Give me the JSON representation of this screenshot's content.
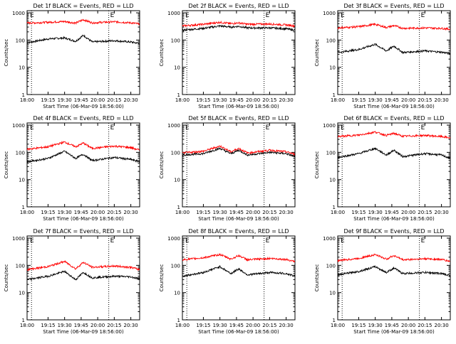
{
  "colors": {
    "events": "#000000",
    "lld": "#ff0000",
    "axis": "#000000",
    "marker": "#000000",
    "background": "#ffffff"
  },
  "shared": {
    "x_ticks": [
      "18:00",
      "19:15",
      "19:30",
      "19:45",
      "20:00",
      "20:15",
      "20:30"
    ],
    "y_ticks": [
      "1",
      "10",
      "100",
      "1000"
    ],
    "y_label": "Counts/sec",
    "x_label": "Start Time (06-Mar-09 18:56:00)",
    "marker_labels": [
      "E",
      "E"
    ],
    "vline_times": [
      "19:00",
      "20:10"
    ]
  },
  "chart_data": [
    {
      "type": "line",
      "title": "Det 1f BLACK = Events, RED = LLD",
      "yscale": "log",
      "ylim": [
        1,
        1200
      ],
      "x": [
        "18:56",
        "19:15",
        "19:30",
        "19:40",
        "19:47",
        "19:55",
        "20:15",
        "20:30",
        "20:38"
      ],
      "series": [
        {
          "name": "Events",
          "values": [
            80,
            110,
            120,
            90,
            150,
            85,
            95,
            85,
            75
          ]
        },
        {
          "name": "LLD",
          "values": [
            420,
            450,
            480,
            420,
            560,
            430,
            470,
            430,
            390
          ]
        }
      ]
    },
    {
      "type": "line",
      "title": "Det 2f BLACK = Events, RED = LLD",
      "yscale": "log",
      "ylim": [
        1,
        1200
      ],
      "x": [
        "18:56",
        "19:15",
        "19:30",
        "19:40",
        "19:47",
        "19:55",
        "20:15",
        "20:30",
        "20:38"
      ],
      "series": [
        {
          "name": "Events",
          "values": [
            230,
            270,
            330,
            300,
            320,
            280,
            280,
            260,
            230
          ]
        },
        {
          "name": "LLD",
          "values": [
            330,
            380,
            450,
            400,
            430,
            380,
            390,
            360,
            330
          ]
        }
      ]
    },
    {
      "type": "line",
      "title": "Det 3f BLACK = Events, RED = LLD",
      "yscale": "log",
      "ylim": [
        1,
        1200
      ],
      "x": [
        "18:56",
        "19:15",
        "19:30",
        "19:40",
        "19:47",
        "19:55",
        "20:15",
        "20:30",
        "20:38"
      ],
      "series": [
        {
          "name": "Events",
          "values": [
            35,
            45,
            70,
            40,
            60,
            35,
            40,
            36,
            32
          ]
        },
        {
          "name": "LLD",
          "values": [
            280,
            310,
            380,
            290,
            340,
            270,
            280,
            270,
            250
          ]
        }
      ]
    },
    {
      "type": "line",
      "title": "Det 4f BLACK = Events, RED = LLD",
      "yscale": "log",
      "ylim": [
        1,
        1200
      ],
      "x": [
        "18:56",
        "19:15",
        "19:30",
        "19:40",
        "19:47",
        "19:55",
        "20:15",
        "20:30",
        "20:38"
      ],
      "series": [
        {
          "name": "Events",
          "values": [
            45,
            60,
            110,
            60,
            85,
            50,
            65,
            55,
            45
          ]
        },
        {
          "name": "LLD",
          "values": [
            130,
            160,
            240,
            160,
            220,
            140,
            170,
            150,
            120
          ]
        }
      ]
    },
    {
      "type": "line",
      "title": "Det 5f BLACK = Events, RED = LLD",
      "yscale": "log",
      "ylim": [
        1,
        1200
      ],
      "x": [
        "18:56",
        "19:15",
        "19:30",
        "19:40",
        "19:47",
        "19:55",
        "20:15",
        "20:30",
        "20:38"
      ],
      "series": [
        {
          "name": "Events",
          "values": [
            80,
            90,
            140,
            90,
            120,
            80,
            100,
            90,
            70
          ]
        },
        {
          "name": "LLD",
          "values": [
            95,
            110,
            170,
            105,
            140,
            95,
            120,
            105,
            85
          ]
        }
      ]
    },
    {
      "type": "line",
      "title": "Det 6f BLACK = Events, RED = LLD",
      "yscale": "log",
      "ylim": [
        1,
        1200
      ],
      "x": [
        "18:56",
        "19:15",
        "19:30",
        "19:40",
        "19:47",
        "19:55",
        "20:15",
        "20:30",
        "20:38"
      ],
      "series": [
        {
          "name": "Events",
          "values": [
            65,
            90,
            140,
            80,
            120,
            70,
            90,
            80,
            60
          ]
        },
        {
          "name": "LLD",
          "values": [
            380,
            430,
            560,
            420,
            500,
            390,
            420,
            380,
            340
          ]
        }
      ]
    },
    {
      "type": "line",
      "title": "Det 7f BLACK = Events, RED = LLD",
      "yscale": "log",
      "ylim": [
        1,
        1200
      ],
      "x": [
        "18:56",
        "19:15",
        "19:30",
        "19:40",
        "19:47",
        "19:55",
        "20:15",
        "20:30",
        "20:38"
      ],
      "series": [
        {
          "name": "Events",
          "values": [
            30,
            40,
            60,
            30,
            55,
            35,
            40,
            38,
            32
          ]
        },
        {
          "name": "LLD",
          "values": [
            70,
            90,
            140,
            75,
            130,
            85,
            95,
            85,
            70
          ]
        }
      ]
    },
    {
      "type": "line",
      "title": "Det 8f BLACK = Events, RED = LLD",
      "yscale": "log",
      "ylim": [
        1,
        1200
      ],
      "x": [
        "18:56",
        "19:15",
        "19:30",
        "19:40",
        "19:47",
        "19:55",
        "20:15",
        "20:30",
        "20:38"
      ],
      "series": [
        {
          "name": "Events",
          "values": [
            40,
            55,
            90,
            50,
            75,
            45,
            55,
            50,
            40
          ]
        },
        {
          "name": "LLD",
          "values": [
            160,
            190,
            250,
            170,
            230,
            160,
            180,
            165,
            140
          ]
        }
      ]
    },
    {
      "type": "line",
      "title": "Det 9f BLACK = Events, RED = LLD",
      "yscale": "log",
      "ylim": [
        1,
        1200
      ],
      "x": [
        "18:56",
        "19:15",
        "19:30",
        "19:40",
        "19:47",
        "19:55",
        "20:15",
        "20:30",
        "20:38"
      ],
      "series": [
        {
          "name": "Events",
          "values": [
            45,
            60,
            90,
            55,
            80,
            50,
            55,
            50,
            42
          ]
        },
        {
          "name": "LLD",
          "values": [
            150,
            180,
            250,
            170,
            230,
            160,
            175,
            165,
            140
          ]
        }
      ]
    }
  ]
}
